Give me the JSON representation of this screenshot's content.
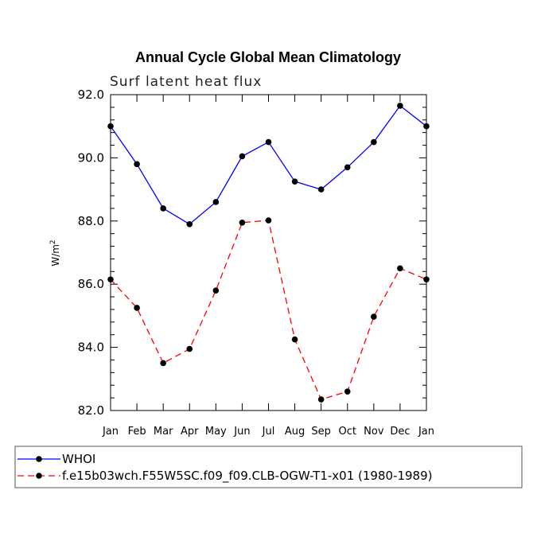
{
  "chart_data": {
    "type": "line",
    "title": "Annual Cycle Global Mean Climatology",
    "subtitle": "Surf latent heat flux",
    "xlabel": "",
    "ylabel": "W/m",
    "ylabel_superscript": "2",
    "categories": [
      "Jan",
      "Feb",
      "Mar",
      "Apr",
      "May",
      "Jun",
      "Jul",
      "Aug",
      "Sep",
      "Oct",
      "Nov",
      "Dec",
      "Jan"
    ],
    "ylim": [
      82.0,
      92.0
    ],
    "yticks": [
      "82.0",
      "84.0",
      "86.0",
      "88.0",
      "90.0",
      "92.0"
    ],
    "ytick_values": [
      82,
      84,
      86,
      88,
      90,
      92
    ],
    "series": [
      {
        "name": "WHOI",
        "color": "#0000ff",
        "dash": "solid",
        "values": [
          91.0,
          89.8,
          88.4,
          87.9,
          88.6,
          90.05,
          90.5,
          89.25,
          89.0,
          89.7,
          90.5,
          91.65,
          91.0
        ]
      },
      {
        "name": "f.e15b03wch.F55W5SC.f09_f09.CLB-OGW-T1-x01 (1980-1989)",
        "color": "#ff0000",
        "dash": "dashed",
        "values": [
          86.15,
          85.25,
          83.5,
          83.95,
          85.8,
          87.95,
          88.02,
          84.25,
          82.35,
          82.6,
          84.97,
          86.5,
          86.15
        ]
      }
    ],
    "legend_position": "bottom-left",
    "grid": false
  }
}
